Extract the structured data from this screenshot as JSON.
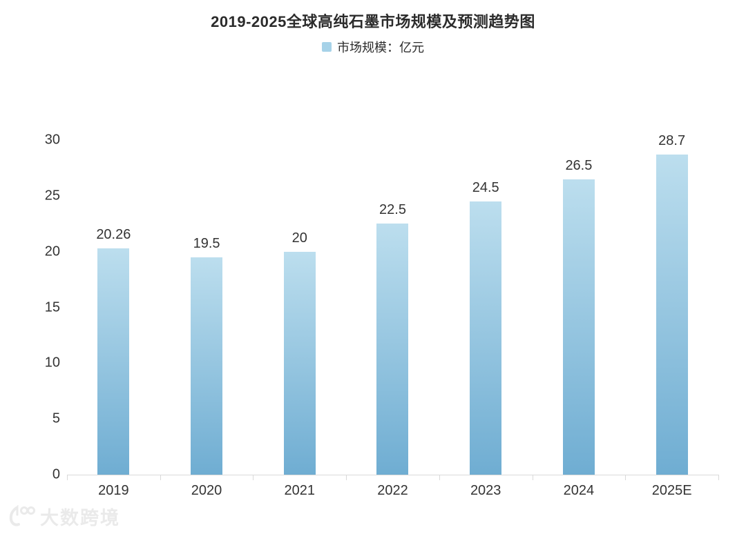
{
  "page": {
    "background": "#ffffff"
  },
  "chart_data": {
    "type": "bar",
    "title": "2019-2025全球高纯石墨市场规模及预测趋势图",
    "legend": {
      "label": "市场规模：亿元",
      "swatch_color": "#a6d2e8",
      "position": "top-center"
    },
    "categories": [
      "2019",
      "2020",
      "2021",
      "2022",
      "2023",
      "2024",
      "2025E"
    ],
    "series": [
      {
        "name": "市场规模：亿元",
        "values": [
          20.26,
          19.5,
          20,
          22.5,
          24.5,
          26.5,
          28.7
        ],
        "value_labels": [
          "20.26",
          "19.5",
          "20",
          "22.5",
          "24.5",
          "26.5",
          "28.7"
        ]
      }
    ],
    "xlabel": "",
    "ylabel": "",
    "ylim": [
      0,
      30
    ],
    "yticks": [
      0,
      5,
      10,
      15,
      20,
      25,
      30
    ],
    "grid": false,
    "legend_position": "top-center",
    "colors": {
      "bar_gradient_top": "#bcdeee",
      "bar_gradient_bottom": "#6fadd2",
      "axis_line": "#d9d9d9",
      "text": "#333333"
    }
  },
  "watermark": {
    "text": "大数跨境",
    "color": "#eaeaea"
  }
}
